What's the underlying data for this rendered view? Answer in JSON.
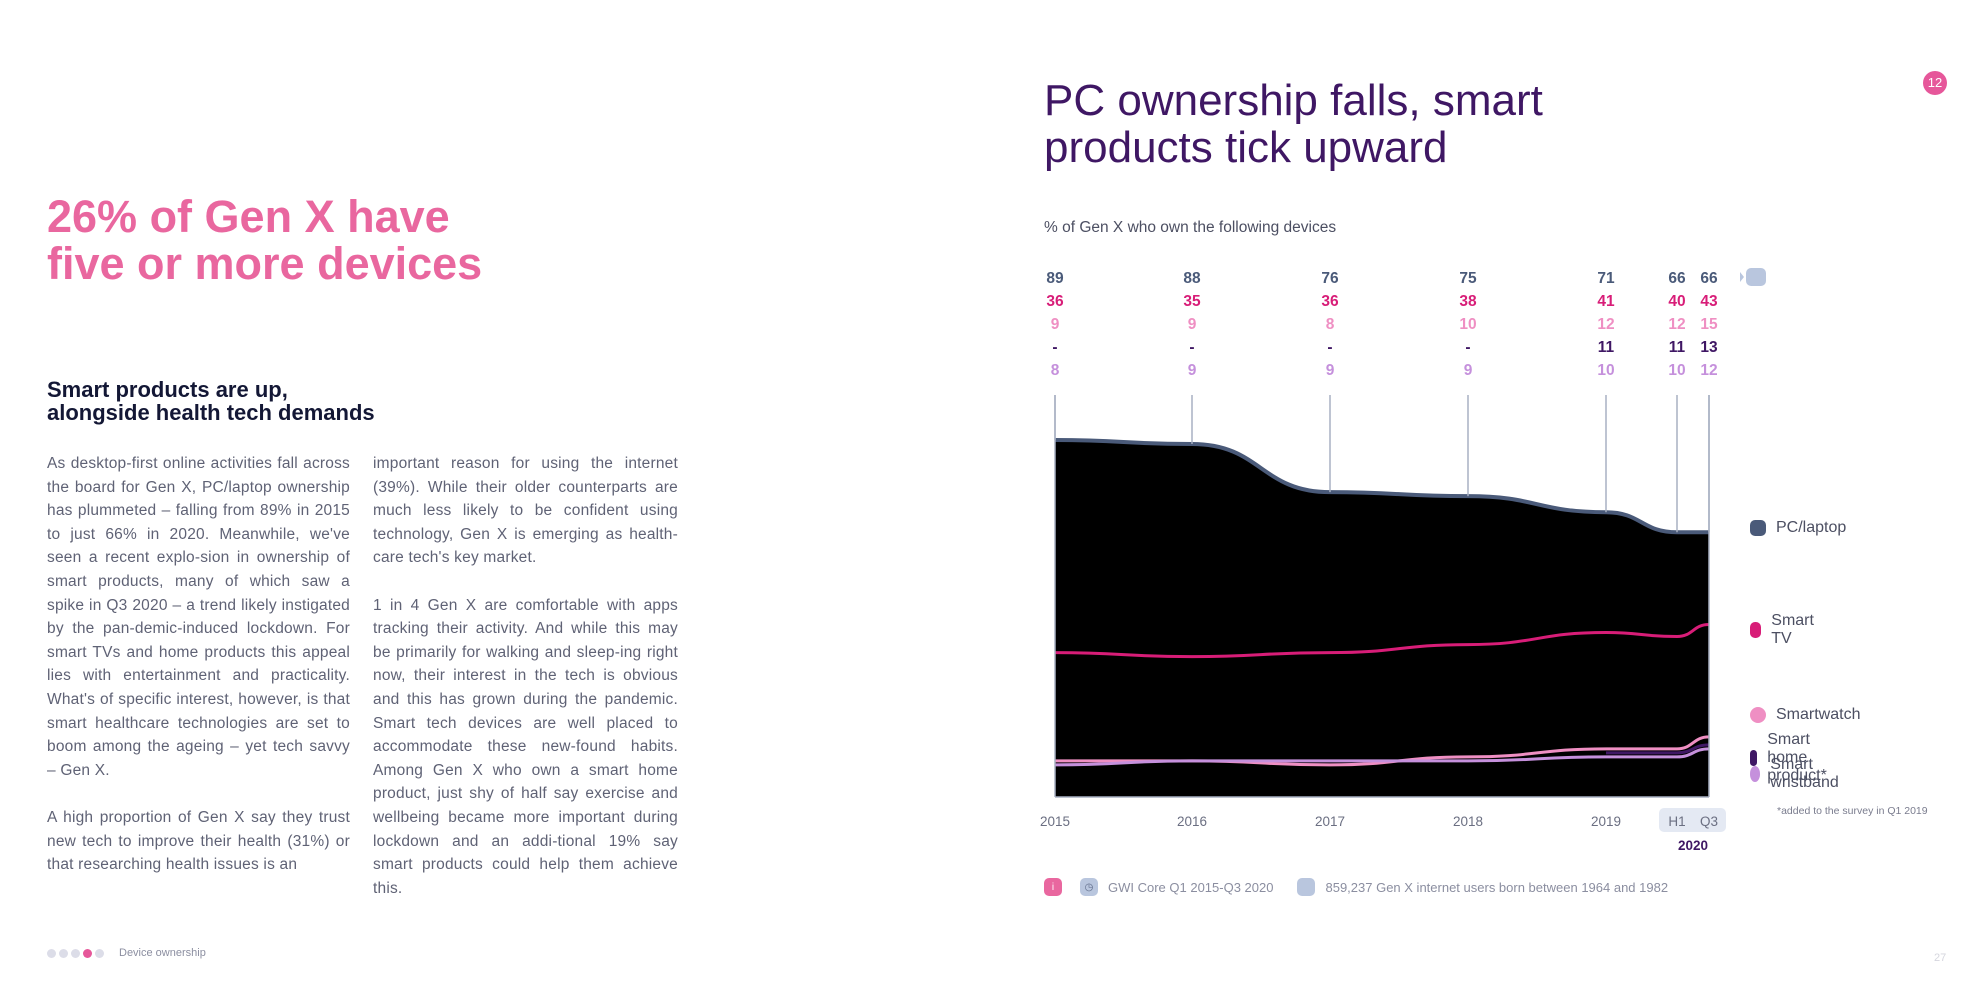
{
  "left": {
    "headline_line1": "26% of Gen X have",
    "headline_line2": "five or more devices",
    "subhead_line1": "Smart products are up,",
    "subhead_line2": "alongside health tech demands",
    "col1_p1": "As desktop-first online activities fall across the board for Gen X, PC/laptop ownership has plummeted – falling from 89% in 2015 to just 66% in 2020. Meanwhile, we've seen a recent explo-sion in ownership of smart products, many of which saw a spike in Q3 2020 – a trend likely instigated by the pan-demic-induced lockdown. For smart TVs and home products this appeal lies with entertainment and practicality. What's of specific interest, however, is that smart healthcare technologies are set to boom among the ageing – yet tech savvy – Gen X.",
    "col1_p2": "A high proportion of Gen X say they trust new tech to improve their health (31%) or that researching health issues is an",
    "col2_p1": "important reason for using the internet (39%). While their older counterparts are much less likely to be confident using technology, Gen X is emerging as health-care tech's key market.",
    "col2_p2": "1 in 4 Gen X are comfortable with apps tracking their activity. And while this may be primarily for walking and sleep-ing right now, their interest in the tech is obvious and this has grown during the pandemic. Smart tech devices are well placed to accommodate these new-found habits. Among Gen X who own a smart home product, just shy of half say exercise and wellbeing became more important during lockdown and an addi-tional 19% say smart products could help them achieve this."
  },
  "right": {
    "title_line1": "PC ownership falls, smart",
    "title_line2": "products tick upward",
    "page_badge": "12",
    "chart_subtitle": "% of Gen X who own the following devices",
    "footnote": "*added to the survey in Q1 2019",
    "footer_source": "GWI Core Q1 2015-Q3 2020",
    "footer_sample": "859,237 Gen X internet users born between 1964 and 1982"
  },
  "footer": {
    "section": "Device ownership",
    "page_number": "27"
  },
  "chart_data": {
    "type": "area",
    "x": [
      "2015",
      "2016",
      "2017",
      "2018",
      "2019",
      "H1",
      "Q3"
    ],
    "year_label": "2020",
    "series": [
      {
        "name": "PC/laptop",
        "color": "#4a5a79",
        "values": [
          89,
          88,
          76,
          75,
          71,
          66,
          66
        ],
        "labels": [
          "89",
          "88",
          "76",
          "75",
          "71",
          "66",
          "66"
        ]
      },
      {
        "name": "Smart TV",
        "color": "#d81d78",
        "values": [
          36,
          35,
          36,
          38,
          41,
          40,
          43
        ],
        "labels": [
          "36",
          "35",
          "36",
          "38",
          "41",
          "40",
          "43"
        ]
      },
      {
        "name": "Smartwatch",
        "color": "#ef8fc3",
        "values": [
          9,
          9,
          8,
          10,
          12,
          12,
          15
        ],
        "labels": [
          "9",
          "9",
          "8",
          "10",
          "12",
          "12",
          "15"
        ]
      },
      {
        "name": "Smart home product*",
        "color": "#3f1764",
        "values": [
          null,
          null,
          null,
          null,
          11,
          11,
          13
        ],
        "labels": [
          "-",
          "-",
          "-",
          "-",
          "11",
          "11",
          "13"
        ]
      },
      {
        "name": "Smart wristband",
        "color": "#c590dc",
        "values": [
          8,
          9,
          9,
          9,
          10,
          10,
          12
        ],
        "labels": [
          "8",
          "9",
          "9",
          "9",
          "10",
          "10",
          "12"
        ]
      }
    ],
    "ylim": [
      0,
      100
    ],
    "grid": false,
    "legend_position": "right"
  }
}
